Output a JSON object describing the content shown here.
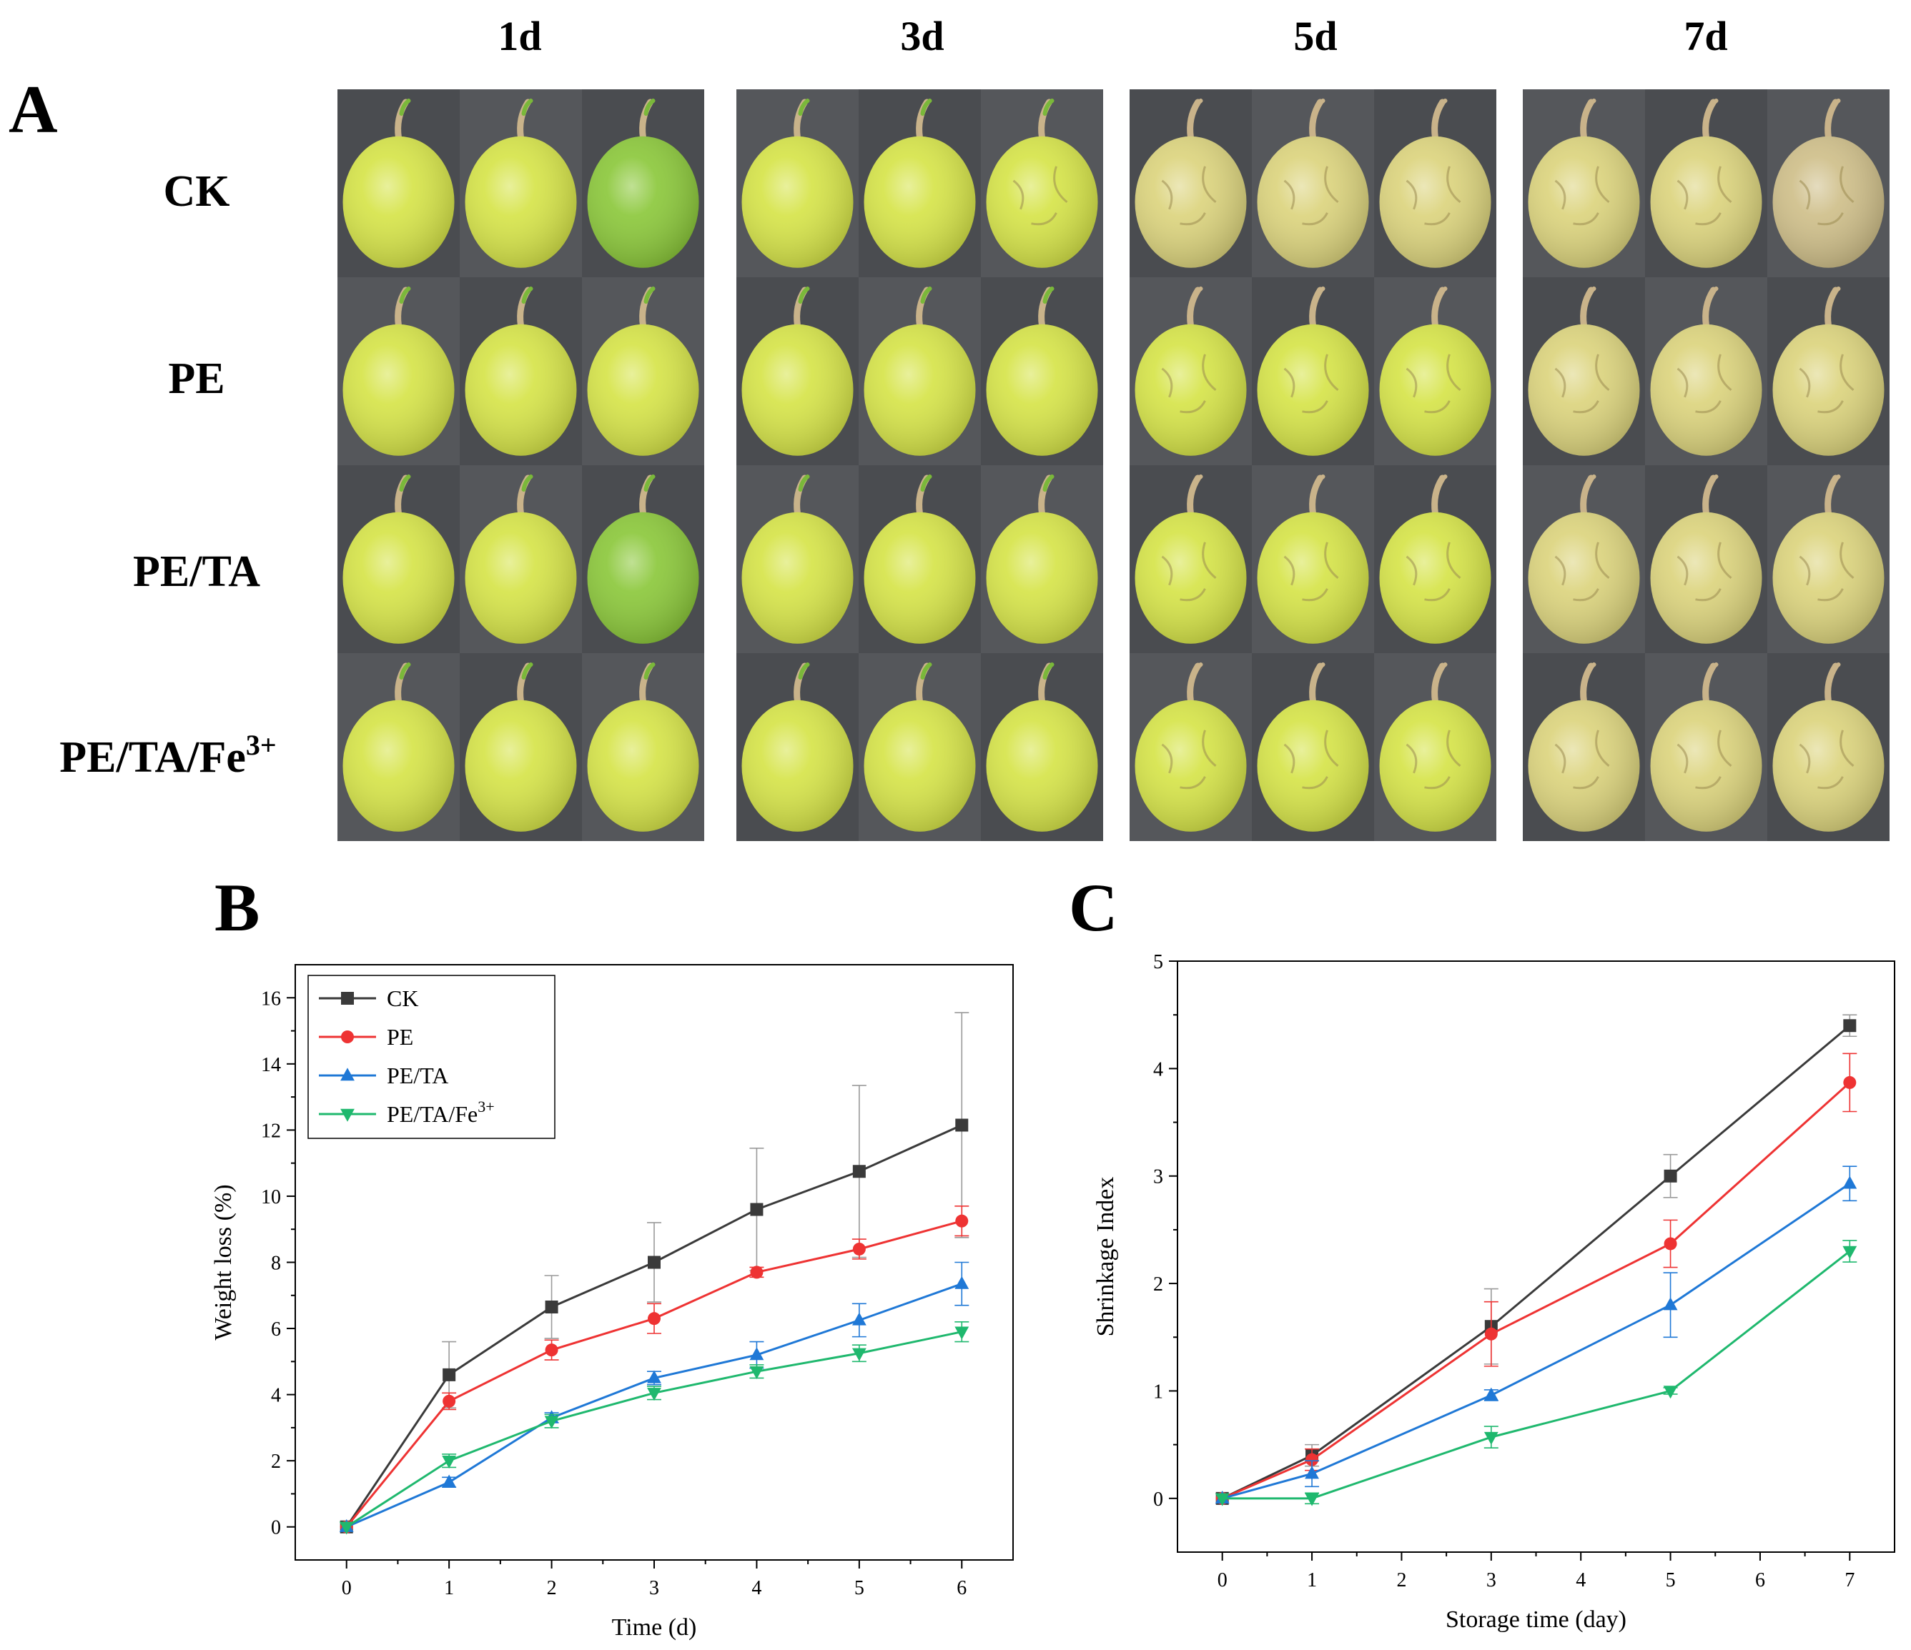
{
  "panel_a": {
    "letter": "A",
    "days": [
      "1d",
      "3d",
      "5d",
      "7d"
    ],
    "rows": [
      {
        "label": "CK"
      },
      {
        "label": "PE"
      },
      {
        "label": "PE/TA"
      },
      {
        "label": "PE/TA/Fe",
        "sup": "3+"
      }
    ],
    "photo_colors": {
      "background": "#4a4c50",
      "fruit_fresh": "#d6e44a",
      "fruit_green": "#8cc83c",
      "fruit_aged": "#dcd47e",
      "fruit_wilted": "#cfbf8a",
      "stem": "#c9b38a",
      "stem_green": "#7ab83a"
    }
  },
  "chart_data": [
    {
      "letter": "B",
      "type": "line",
      "xlabel": "Time (d)",
      "ylabel": "Weight loss (%)",
      "xlim": [
        -0.5,
        6.5
      ],
      "ylim": [
        -1,
        17
      ],
      "xticks": [
        0,
        1,
        2,
        3,
        4,
        5,
        6
      ],
      "yticks": [
        0,
        2,
        4,
        6,
        8,
        10,
        12,
        14,
        16
      ],
      "legend_position": "top-left",
      "x": [
        0,
        1,
        2,
        3,
        4,
        5,
        6
      ],
      "series": [
        {
          "name": "CK",
          "color": "#3a3a3a",
          "marker": "square",
          "values": [
            0,
            4.6,
            6.65,
            8.0,
            9.6,
            10.75,
            12.15
          ],
          "errors": [
            0,
            1.0,
            0.95,
            1.2,
            1.85,
            2.6,
            3.4
          ]
        },
        {
          "name": "PE",
          "color": "#ee3333",
          "marker": "circle",
          "values": [
            0,
            3.8,
            5.35,
            6.3,
            7.7,
            8.4,
            9.25
          ],
          "errors": [
            0,
            0.25,
            0.3,
            0.45,
            0.15,
            0.3,
            0.45
          ]
        },
        {
          "name": "PE/TA",
          "color": "#1f78d6",
          "marker": "triangle-up",
          "values": [
            0,
            1.35,
            3.3,
            4.5,
            5.2,
            6.25,
            7.35
          ],
          "errors": [
            0,
            0.15,
            0.15,
            0.2,
            0.4,
            0.5,
            0.65
          ]
        },
        {
          "name": "PE/TA/Fe",
          "name_sup": "3+",
          "color": "#1fb86e",
          "marker": "triangle-down",
          "values": [
            0,
            2.0,
            3.2,
            4.05,
            4.7,
            5.25,
            5.9
          ],
          "errors": [
            0,
            0.2,
            0.2,
            0.2,
            0.2,
            0.25,
            0.3
          ]
        }
      ]
    },
    {
      "letter": "C",
      "type": "line",
      "xlabel": "Storage time (day)",
      "ylabel": "Shrinkage Index",
      "xlim": [
        -0.5,
        7.5
      ],
      "ylim": [
        -0.5,
        5
      ],
      "xticks": [
        0,
        1,
        2,
        3,
        4,
        5,
        6,
        7
      ],
      "yticks": [
        0,
        1,
        2,
        3,
        4,
        5
      ],
      "legend_position": "none",
      "x": [
        0,
        1,
        3,
        5,
        7
      ],
      "series": [
        {
          "color": "#3a3a3a",
          "marker": "square",
          "values": [
            0,
            0.4,
            1.6,
            3.0,
            4.4
          ],
          "errors": [
            0,
            0.1,
            0.35,
            0.2,
            0.1
          ]
        },
        {
          "color": "#ee3333",
          "marker": "circle",
          "values": [
            0,
            0.36,
            1.53,
            2.37,
            3.87
          ],
          "errors": [
            0,
            0.1,
            0.3,
            0.22,
            0.27
          ]
        },
        {
          "color": "#1f78d6",
          "marker": "triangle-up",
          "values": [
            0,
            0.23,
            0.96,
            1.8,
            2.93
          ],
          "errors": [
            0,
            0.12,
            0.05,
            0.3,
            0.16
          ]
        },
        {
          "color": "#1fb86e",
          "marker": "triangle-down",
          "values": [
            0,
            0,
            0.57,
            1.0,
            2.3
          ],
          "errors": [
            0,
            0.05,
            0.1,
            0.03,
            0.1
          ]
        }
      ]
    }
  ]
}
